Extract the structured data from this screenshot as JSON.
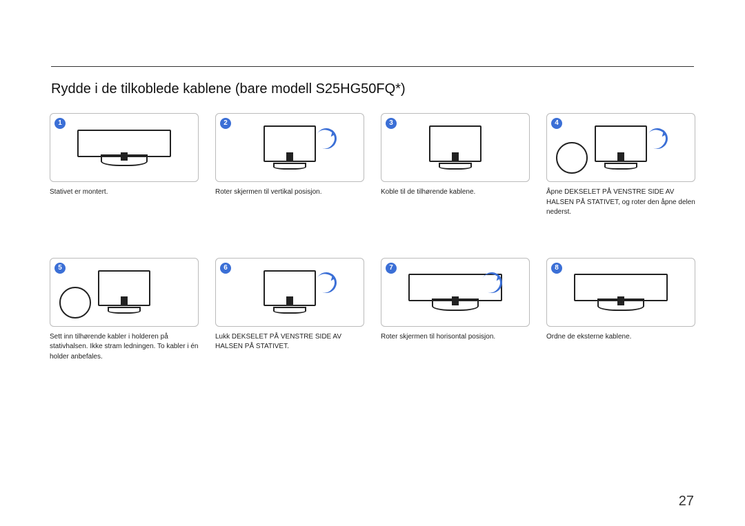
{
  "title": "Rydde i de tilkoblede kablene (bare modell S25HG50FQ*)",
  "page_number": "27",
  "accent_color": "#3b6fd6",
  "steps": [
    {
      "num": "1",
      "caption": "Stativet er montert.",
      "orient": "landscape",
      "arrow": false,
      "detail": false
    },
    {
      "num": "2",
      "caption": "Roter skjermen til vertikal posisjon.",
      "orient": "portrait",
      "arrow": true,
      "detail": false
    },
    {
      "num": "3",
      "caption": "Koble til de tilhørende kablene.",
      "orient": "portrait",
      "arrow": false,
      "detail": false
    },
    {
      "num": "4",
      "caption": "Åpne DEKSELET PÅ VENSTRE SIDE AV HALSEN PÅ STATIVET, og roter den åpne delen nederst.",
      "orient": "portrait",
      "arrow": true,
      "detail": true
    },
    {
      "num": "5",
      "caption": "Sett inn tilhørende kabler i holderen på stativhalsen. Ikke stram ledningen. To kabler i én holder anbefales.",
      "orient": "portrait",
      "arrow": false,
      "detail": true
    },
    {
      "num": "6",
      "caption": "Lukk DEKSELET PÅ VENSTRE SIDE AV HALSEN PÅ STATIVET.",
      "orient": "portrait",
      "arrow": true,
      "detail": false
    },
    {
      "num": "7",
      "caption": "Roter skjermen til horisontal posisjon.",
      "orient": "landscape",
      "arrow": true,
      "detail": false
    },
    {
      "num": "8",
      "caption": "Ordne de eksterne kablene.",
      "orient": "landscape",
      "arrow": false,
      "detail": false
    }
  ]
}
